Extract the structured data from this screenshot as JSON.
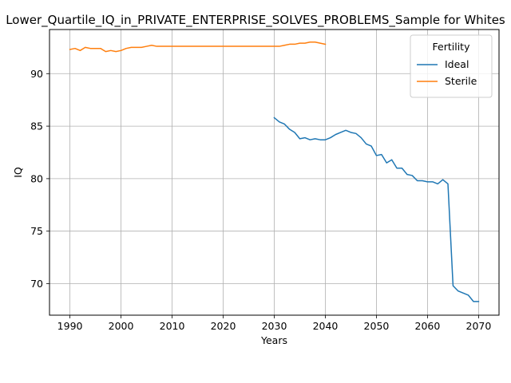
{
  "chart_data": {
    "type": "line",
    "title": "Lower_Quartile_IQ_in_PRIVATE_ENTERPRISE_SOLVES_PROBLEMS_Sample for Whites",
    "xlabel": "Years",
    "ylabel": "IQ",
    "xlim": [
      1986,
      2074
    ],
    "ylim": [
      67.0,
      94.2
    ],
    "xticks": [
      1990,
      2000,
      2010,
      2020,
      2030,
      2040,
      2050,
      2060,
      2070
    ],
    "yticks": [
      70,
      75,
      80,
      85,
      90
    ],
    "grid": true,
    "legend": {
      "title": "Fertility",
      "placement": "top-right"
    },
    "series": [
      {
        "name": "Ideal",
        "color": "#1f77b4",
        "x": [
          2030,
          2031,
          2032,
          2033,
          2034,
          2035,
          2036,
          2037,
          2038,
          2039,
          2040,
          2041,
          2042,
          2043,
          2044,
          2045,
          2046,
          2047,
          2048,
          2049,
          2050,
          2051,
          2052,
          2053,
          2054,
          2055,
          2056,
          2057,
          2058,
          2059,
          2060,
          2061,
          2062,
          2063,
          2064,
          2065,
          2066,
          2067,
          2068,
          2069,
          2070
        ],
        "y": [
          85.8,
          85.4,
          85.2,
          84.7,
          84.4,
          83.8,
          83.9,
          83.7,
          83.8,
          83.7,
          83.7,
          83.9,
          84.2,
          84.4,
          84.6,
          84.4,
          84.3,
          83.9,
          83.3,
          83.1,
          82.2,
          82.3,
          81.5,
          81.8,
          81.0,
          81.0,
          80.4,
          80.3,
          79.8,
          79.8,
          79.7,
          79.7,
          79.5,
          79.9,
          79.5,
          69.8,
          69.3,
          69.1,
          68.9,
          68.3,
          68.3
        ]
      },
      {
        "name": "Sterile",
        "color": "#ff7f0e",
        "x": [
          1990,
          1991,
          1992,
          1993,
          1994,
          1995,
          1996,
          1997,
          1998,
          1999,
          2000,
          2001,
          2002,
          2003,
          2004,
          2005,
          2006,
          2007,
          2008,
          2009,
          2010,
          2011,
          2012,
          2013,
          2014,
          2015,
          2016,
          2017,
          2018,
          2019,
          2020,
          2021,
          2022,
          2023,
          2024,
          2025,
          2026,
          2027,
          2028,
          2029,
          2030,
          2031,
          2032,
          2033,
          2034,
          2035,
          2036,
          2037,
          2038,
          2039,
          2040
        ],
        "y": [
          92.3,
          92.4,
          92.2,
          92.5,
          92.4,
          92.4,
          92.4,
          92.1,
          92.2,
          92.1,
          92.2,
          92.4,
          92.5,
          92.5,
          92.5,
          92.6,
          92.7,
          92.6,
          92.6,
          92.6,
          92.6,
          92.6,
          92.6,
          92.6,
          92.6,
          92.6,
          92.6,
          92.6,
          92.6,
          92.6,
          92.6,
          92.6,
          92.6,
          92.6,
          92.6,
          92.6,
          92.6,
          92.6,
          92.6,
          92.6,
          92.6,
          92.6,
          92.7,
          92.8,
          92.8,
          92.9,
          92.9,
          93.0,
          93.0,
          92.9,
          92.8
        ]
      }
    ]
  }
}
